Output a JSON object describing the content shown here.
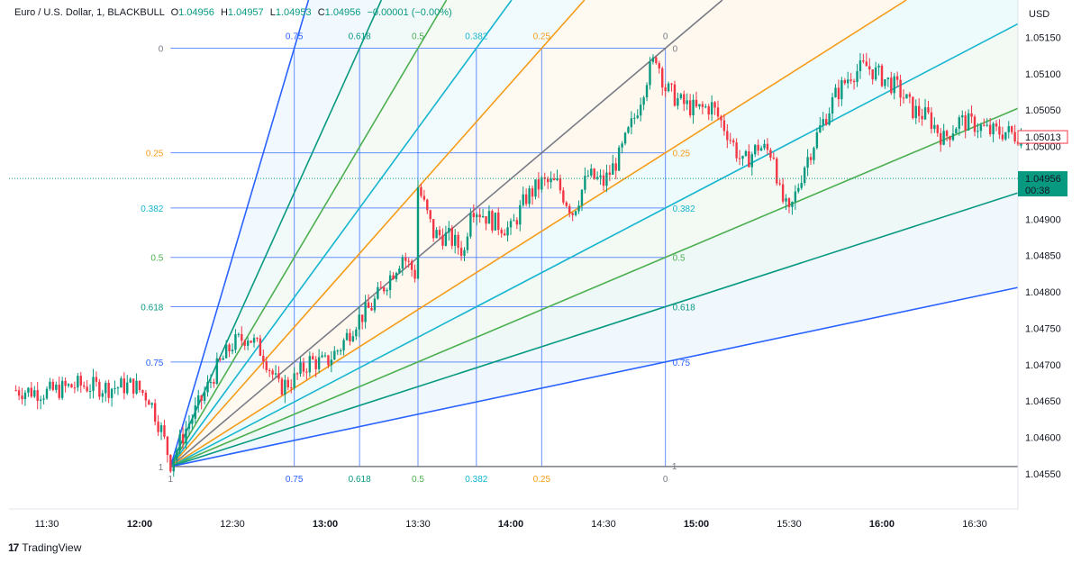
{
  "header": {
    "symbol": "Euro / U.S. Dollar, 1, BLACKBULL",
    "o_label": "O",
    "o_value": "1.04956",
    "h_label": "H",
    "h_value": "1.04957",
    "l_label": "L",
    "l_value": "1.04953",
    "c_label": "C",
    "c_value": "1.04956",
    "change": "−0.00001 (−0.00%)"
  },
  "currency": "USD",
  "branding": {
    "logo": "17",
    "name": "TradingView"
  },
  "price_tags": {
    "last_close": "1.05013",
    "current": "1.04956",
    "countdown": "00:38"
  },
  "colors": {
    "up": "#089981",
    "down": "#f23645",
    "fib_0": "#787b86",
    "fib_025": "#f59c1a",
    "fib_0382": "#16b5cf",
    "fib_05": "#4caf50",
    "fib_0618": "#089981",
    "fib_075": "#2962ff",
    "fib_1": "#787b86"
  },
  "chart_data": {
    "type": "candlestick",
    "symbol": "EURUSD",
    "timeframe": "1",
    "ylim": [
      1.0455,
      1.0518
    ],
    "x_range": [
      "11:20",
      "16:48"
    ],
    "y_ticks": [
      "1.05150",
      "1.05100",
      "1.05050",
      "1.05000",
      "1.04950",
      "1.04900",
      "1.04850",
      "1.04800",
      "1.04750",
      "1.04700",
      "1.04650",
      "1.04600",
      "1.04550"
    ],
    "x_ticks": [
      {
        "label": "11:30",
        "bold": false
      },
      {
        "label": "12:00",
        "bold": true
      },
      {
        "label": "12:30",
        "bold": false
      },
      {
        "label": "13:00",
        "bold": true
      },
      {
        "label": "13:30",
        "bold": false
      },
      {
        "label": "14:00",
        "bold": true
      },
      {
        "label": "14:30",
        "bold": false
      },
      {
        "label": "15:00",
        "bold": true
      },
      {
        "label": "15:30",
        "bold": false
      },
      {
        "label": "16:00",
        "bold": true
      },
      {
        "label": "16:30",
        "bold": false
      }
    ],
    "price_path": [
      [
        "11:20",
        1.04665
      ],
      [
        "11:30",
        1.04662
      ],
      [
        "11:40",
        1.04672
      ],
      [
        "11:50",
        1.04668
      ],
      [
        "11:58",
        1.04672
      ],
      [
        "12:03",
        1.04655
      ],
      [
        "12:07",
        1.0461
      ],
      [
        "12:10",
        1.04565
      ],
      [
        "12:15",
        1.04612
      ],
      [
        "12:20",
        1.04652
      ],
      [
        "12:25",
        1.04695
      ],
      [
        "12:30",
        1.04728
      ],
      [
        "12:35",
        1.0474
      ],
      [
        "12:40",
        1.04715
      ],
      [
        "12:45",
        1.04668
      ],
      [
        "12:50",
        1.0468
      ],
      [
        "12:55",
        1.04705
      ],
      [
        "13:00",
        1.04702
      ],
      [
        "13:05",
        1.04725
      ],
      [
        "13:10",
        1.0476
      ],
      [
        "13:15",
        1.0478
      ],
      [
        "13:20",
        1.04815
      ],
      [
        "13:25",
        1.0485
      ],
      [
        "13:29",
        1.04825
      ],
      [
        "13:30",
        1.04945
      ],
      [
        "13:35",
        1.0488
      ],
      [
        "13:40",
        1.04875
      ],
      [
        "13:45",
        1.04855
      ],
      [
        "13:47",
        1.0492
      ],
      [
        "13:50",
        1.0491
      ],
      [
        "13:55",
        1.04895
      ],
      [
        "14:00",
        1.04885
      ],
      [
        "14:05",
        1.0493
      ],
      [
        "14:10",
        1.0495
      ],
      [
        "14:15",
        1.04948
      ],
      [
        "14:20",
        1.0491
      ],
      [
        "14:25",
        1.0496
      ],
      [
        "14:30",
        1.0495
      ],
      [
        "14:35",
        1.04985
      ],
      [
        "14:40",
        1.0504
      ],
      [
        "14:44",
        1.05095
      ],
      [
        "14:47",
        1.05125
      ],
      [
        "14:50",
        1.0508
      ],
      [
        "14:55",
        1.0506
      ],
      [
        "15:00",
        1.0505
      ],
      [
        "15:05",
        1.05055
      ],
      [
        "15:10",
        1.0502
      ],
      [
        "15:15",
        1.04975
      ],
      [
        "15:20",
        1.05
      ],
      [
        "15:25",
        1.0499
      ],
      [
        "15:27",
        1.04935
      ],
      [
        "15:30",
        1.04905
      ],
      [
        "15:35",
        1.04975
      ],
      [
        "15:40",
        1.05025
      ],
      [
        "15:45",
        1.0507
      ],
      [
        "15:50",
        1.051
      ],
      [
        "15:55",
        1.0511
      ],
      [
        "16:00",
        1.05095
      ],
      [
        "16:05",
        1.0508
      ],
      [
        "16:10",
        1.0505
      ],
      [
        "16:15",
        1.0504
      ],
      [
        "16:20",
        1.0501
      ],
      [
        "16:25",
        1.05035
      ],
      [
        "16:30",
        1.0503
      ],
      [
        "16:35",
        1.0502
      ],
      [
        "16:40",
        1.0502
      ],
      [
        "16:45",
        1.05013
      ]
    ],
    "gann_fib": {
      "anchor": {
        "time": "12:10",
        "price": 1.0456
      },
      "end": {
        "time": "14:50",
        "price": 1.05135
      },
      "levels": [
        {
          "ratio": 0,
          "label": "0",
          "color_key": "fib_0"
        },
        {
          "ratio": 0.25,
          "label": "0.25",
          "color_key": "fib_025"
        },
        {
          "ratio": 0.382,
          "label": "0.382",
          "color_key": "fib_0382"
        },
        {
          "ratio": 0.5,
          "label": "0.5",
          "color_key": "fib_05"
        },
        {
          "ratio": 0.618,
          "label": "0.618",
          "color_key": "fib_0618"
        },
        {
          "ratio": 0.75,
          "label": "0.75",
          "color_key": "fib_075"
        }
      ],
      "bottom_label": "1",
      "left_label_1": "1"
    }
  }
}
